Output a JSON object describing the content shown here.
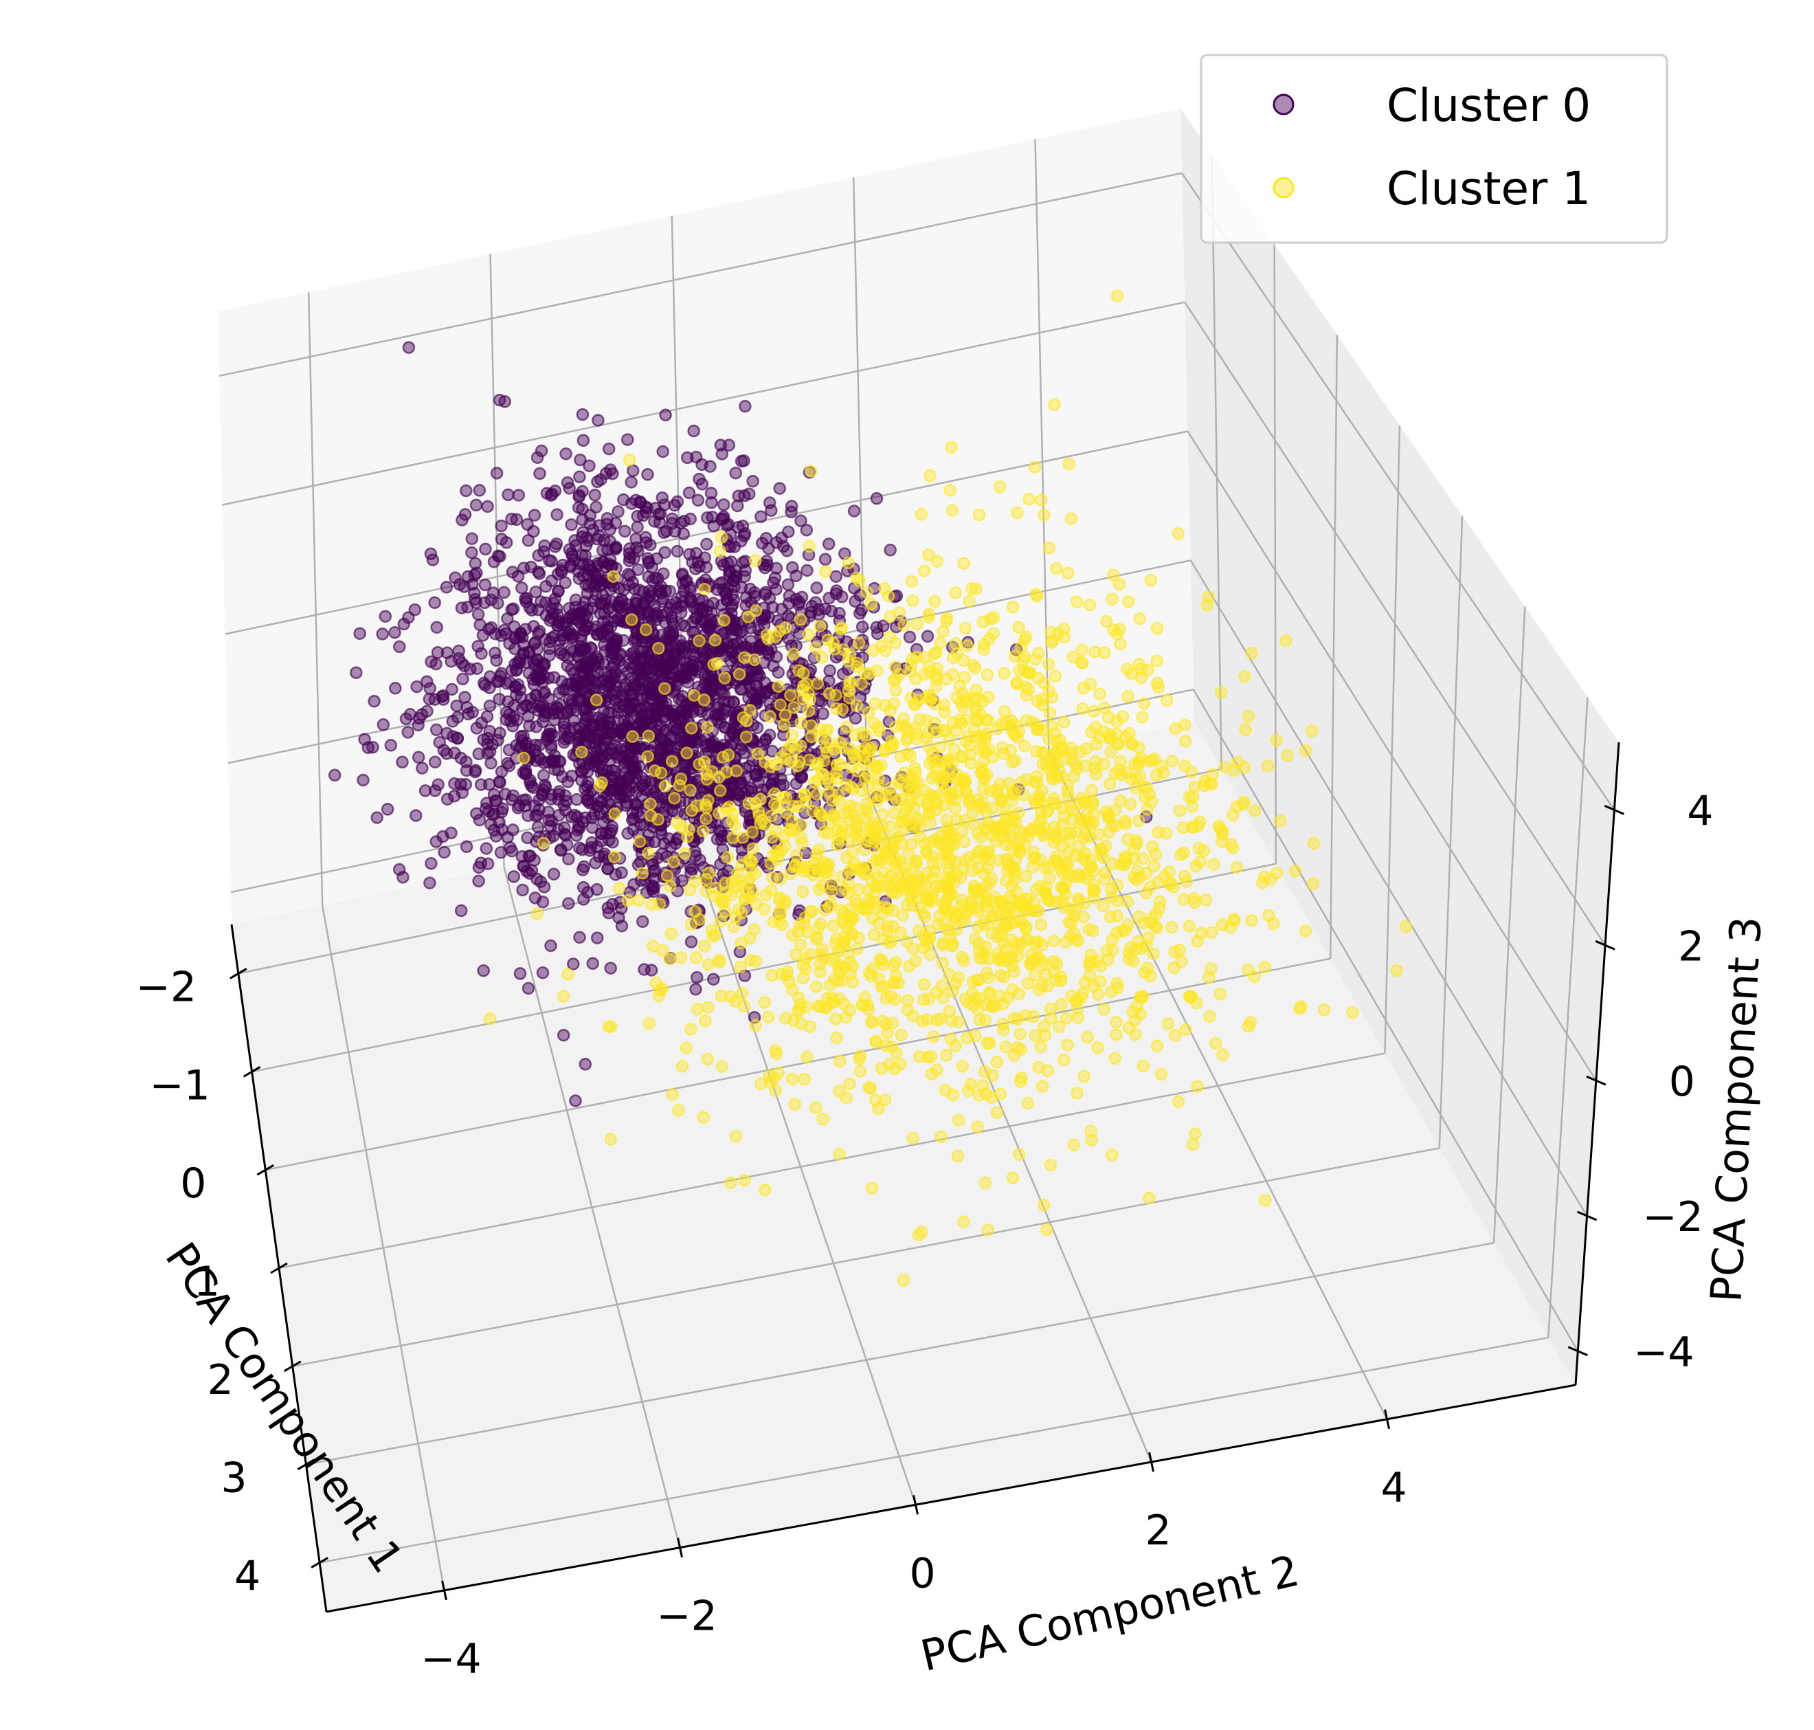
{
  "chart_data": {
    "type": "scatter",
    "projection": "3d",
    "xlabel": "PCA Component 1",
    "ylabel": "PCA Component 2",
    "zlabel": "PCA Component 3",
    "x_ticks": [
      "−2",
      "−1",
      "0",
      "1",
      "2",
      "3",
      "4"
    ],
    "y_ticks": [
      "−4",
      "−2",
      "0",
      "2",
      "4"
    ],
    "z_ticks": [
      "−4",
      "−2",
      "0",
      "2",
      "4"
    ],
    "xlim": [
      -2.5,
      4.5
    ],
    "ylim": [
      -5,
      5.6
    ],
    "zlim": [
      -4.5,
      5
    ],
    "grid": true,
    "legend_position": "top-right",
    "series": [
      {
        "name": "Cluster 0",
        "color": "#440154",
        "alpha": 0.45,
        "approx_points": 2600,
        "center": [
          -0.6,
          -1.0,
          0.6
        ],
        "spread": [
          0.8,
          1.0,
          1.0
        ]
      },
      {
        "name": "Cluster 1",
        "color": "#fde725",
        "alpha": 0.45,
        "approx_points": 2000,
        "center": [
          0.9,
          1.4,
          -0.2
        ],
        "spread": [
          1.0,
          1.3,
          1.2
        ]
      }
    ]
  }
}
